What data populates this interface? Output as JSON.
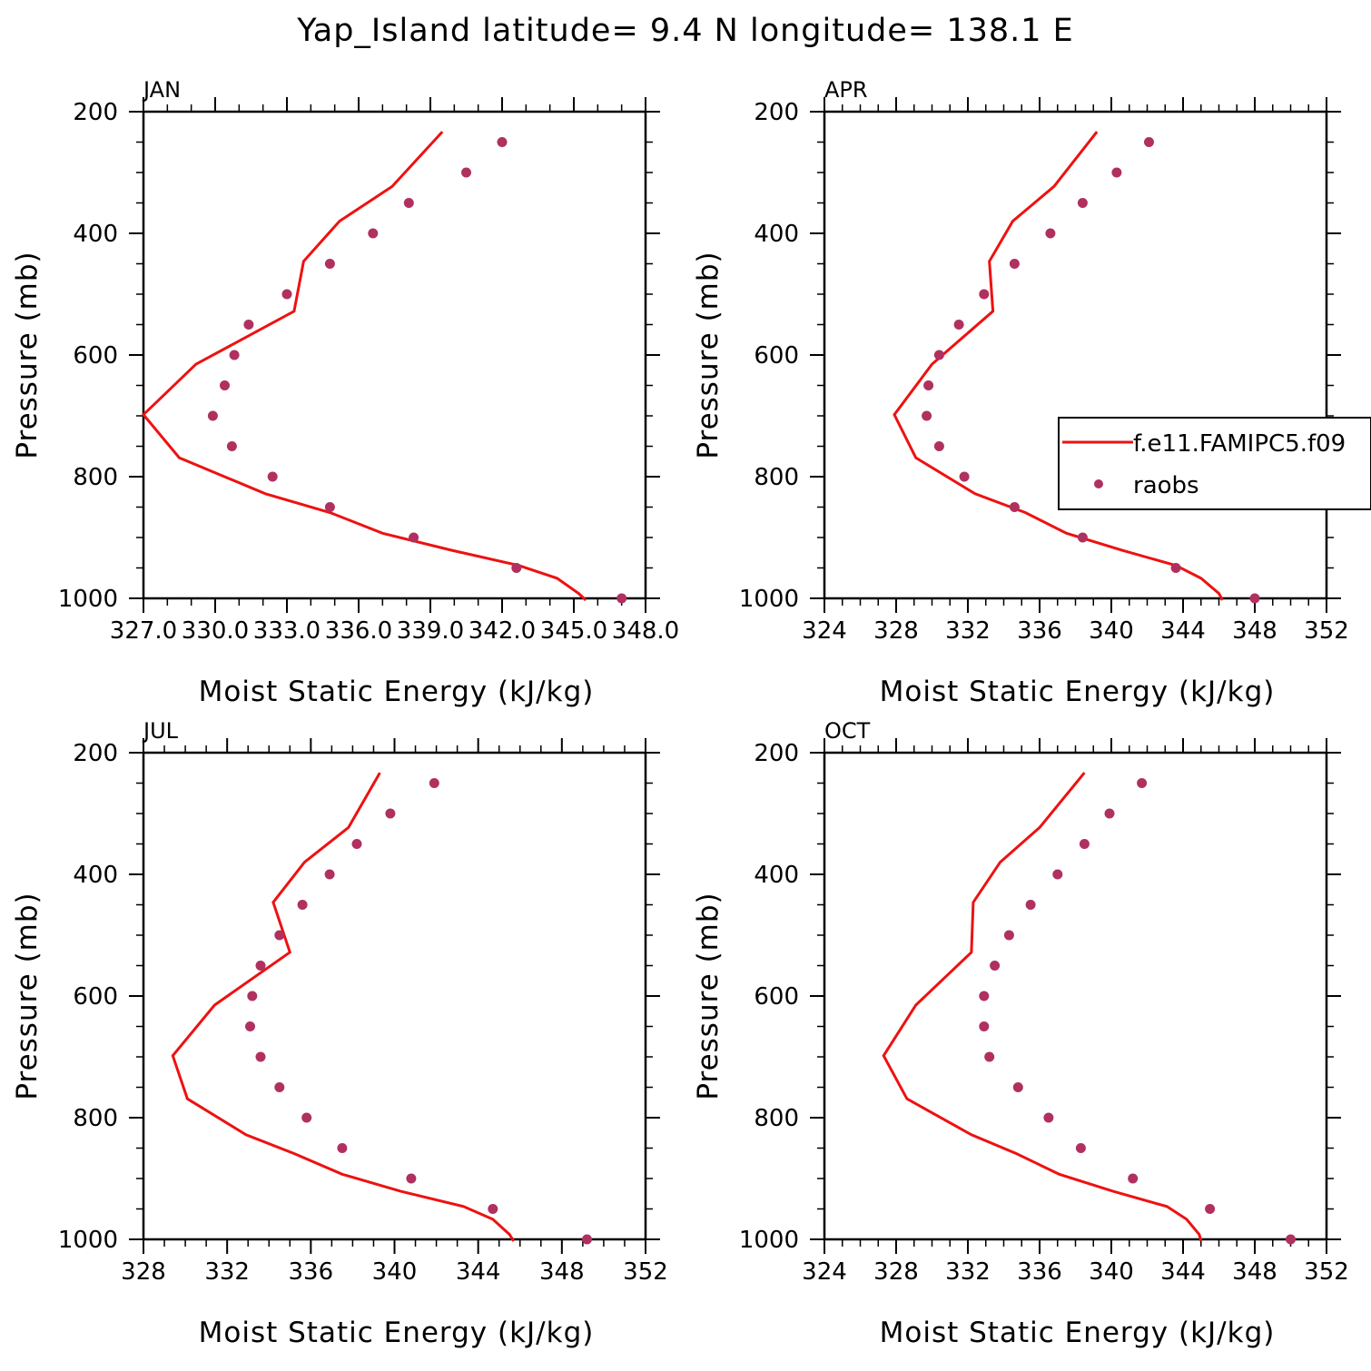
{
  "title": "Yap_Island  latitude= 9.4 N longitude= 138.1 E",
  "colors": {
    "model": "#ee1111",
    "obs": "#b03060",
    "axis": "#000000"
  },
  "legend": {
    "model_label": "f.e11.FAMIPC5.f09",
    "obs_label": "raobs",
    "placement": "panel APR, right"
  },
  "chart_data": [
    {
      "type": "line",
      "panel": "JAN",
      "title": "JAN",
      "xlabel": "Moist Static Energy (kJ/kg)",
      "ylabel": "Pressure (mb)",
      "xlim": [
        327.0,
        348.0
      ],
      "ylim": [
        1000,
        200
      ],
      "xticks": [
        327.0,
        330.0,
        333.0,
        336.0,
        339.0,
        342.0,
        345.0,
        348.0
      ],
      "xtick_labels": [
        "327.0",
        "330.0",
        "333.0",
        "336.0",
        "339.0",
        "342.0",
        "345.0",
        "348.0"
      ],
      "yticks": [
        200,
        400,
        600,
        800,
        1000
      ],
      "ytick_labels": [
        "200",
        "400",
        "600",
        "800",
        "1000"
      ],
      "series": [
        {
          "name": "f.e11.FAMIPC5.f09",
          "kind": "line",
          "x": [
            345.5,
            345.2,
            344.3,
            342.7,
            339.9,
            337.0,
            334.8,
            332.1,
            328.5,
            327.0,
            329.2,
            333.3,
            333.7,
            335.2,
            337.4,
            339.5
          ],
          "y": [
            1003,
            992,
            967,
            946,
            921,
            893,
            859,
            828,
            769,
            698,
            615,
            528,
            446,
            380,
            323,
            233
          ]
        },
        {
          "name": "raobs",
          "kind": "scatter",
          "x": [
            347.0,
            342.6,
            338.3,
            334.8,
            332.4,
            330.7,
            329.9,
            330.4,
            330.8,
            331.4,
            333.0,
            334.8,
            336.6,
            338.1,
            340.5,
            342.0
          ],
          "y": [
            1000,
            950,
            900,
            850,
            800,
            750,
            700,
            650,
            600,
            550,
            500,
            450,
            400,
            350,
            300,
            250
          ]
        }
      ]
    },
    {
      "type": "line",
      "panel": "APR",
      "title": "APR",
      "xlabel": "Moist Static Energy (kJ/kg)",
      "ylabel": "Pressure (mb)",
      "xlim": [
        324,
        352
      ],
      "ylim": [
        1000,
        200
      ],
      "xticks": [
        324,
        328,
        332,
        336,
        340,
        344,
        348,
        352
      ],
      "xtick_labels": [
        "324",
        "328",
        "332",
        "336",
        "340",
        "344",
        "348",
        "352"
      ],
      "yticks": [
        200,
        400,
        600,
        800,
        1000
      ],
      "ytick_labels": [
        "200",
        "400",
        "600",
        "800",
        "1000"
      ],
      "series": [
        {
          "name": "f.e11.FAMIPC5.f09",
          "kind": "line",
          "x": [
            346.2,
            346.0,
            345.0,
            343.6,
            340.6,
            337.5,
            335.2,
            332.4,
            329.1,
            327.9,
            330.0,
            333.4,
            333.2,
            334.5,
            336.8,
            339.2
          ],
          "y": [
            1003,
            992,
            967,
            946,
            921,
            893,
            859,
            828,
            769,
            698,
            615,
            528,
            446,
            380,
            323,
            233
          ]
        },
        {
          "name": "raobs",
          "kind": "scatter",
          "x": [
            348.0,
            343.6,
            338.4,
            334.6,
            331.8,
            330.4,
            329.7,
            329.8,
            330.4,
            331.5,
            332.9,
            334.6,
            336.6,
            338.4,
            340.3,
            342.1
          ],
          "y": [
            1000,
            950,
            900,
            850,
            800,
            750,
            700,
            650,
            600,
            550,
            500,
            450,
            400,
            350,
            300,
            250
          ]
        }
      ]
    },
    {
      "type": "line",
      "panel": "JUL",
      "title": "JUL",
      "xlabel": "Moist Static Energy (kJ/kg)",
      "ylabel": "Pressure (mb)",
      "xlim": [
        328,
        352
      ],
      "ylim": [
        1000,
        200
      ],
      "xticks": [
        328,
        332,
        336,
        340,
        344,
        348,
        352
      ],
      "xtick_labels": [
        "328",
        "332",
        "336",
        "340",
        "344",
        "348",
        "352"
      ],
      "yticks": [
        200,
        400,
        600,
        800,
        1000
      ],
      "ytick_labels": [
        "200",
        "400",
        "600",
        "800",
        "1000"
      ],
      "series": [
        {
          "name": "f.e11.FAMIPC5.f09",
          "kind": "line",
          "x": [
            345.7,
            345.5,
            344.7,
            343.3,
            340.3,
            337.5,
            335.2,
            332.9,
            330.1,
            329.4,
            331.4,
            335.0,
            334.2,
            335.7,
            337.8,
            339.3
          ],
          "y": [
            1003,
            992,
            967,
            946,
            921,
            893,
            859,
            828,
            769,
            698,
            615,
            528,
            446,
            380,
            323,
            233
          ]
        },
        {
          "name": "raobs",
          "kind": "scatter",
          "x": [
            349.2,
            344.7,
            340.8,
            337.5,
            335.8,
            334.5,
            333.6,
            333.1,
            333.2,
            333.6,
            334.5,
            335.6,
            336.9,
            338.2,
            339.8,
            341.9
          ],
          "y": [
            1000,
            950,
            900,
            850,
            800,
            750,
            700,
            650,
            600,
            550,
            500,
            450,
            400,
            350,
            300,
            250
          ]
        }
      ]
    },
    {
      "type": "line",
      "panel": "OCT",
      "title": "OCT",
      "xlabel": "Moist Static Energy (kJ/kg)",
      "ylabel": "Pressure (mb)",
      "xlim": [
        324,
        352
      ],
      "ylim": [
        1000,
        200
      ],
      "xticks": [
        324,
        328,
        332,
        336,
        340,
        344,
        348,
        352
      ],
      "xtick_labels": [
        "324",
        "328",
        "332",
        "336",
        "340",
        "344",
        "348",
        "352"
      ],
      "yticks": [
        200,
        400,
        600,
        800,
        1000
      ],
      "ytick_labels": [
        "200",
        "400",
        "600",
        "800",
        "1000"
      ],
      "series": [
        {
          "name": "f.e11.FAMIPC5.f09",
          "kind": "line",
          "x": [
            345.0,
            344.9,
            344.2,
            343.1,
            340.1,
            337.1,
            334.7,
            332.2,
            328.6,
            327.3,
            329.1,
            332.2,
            332.3,
            333.8,
            336.0,
            338.5
          ],
          "y": [
            1003,
            992,
            967,
            946,
            921,
            893,
            859,
            828,
            769,
            698,
            615,
            528,
            446,
            380,
            323,
            233
          ]
        },
        {
          "name": "raobs",
          "kind": "scatter",
          "x": [
            350.0,
            345.5,
            341.2,
            338.3,
            336.5,
            334.8,
            333.2,
            332.9,
            332.9,
            333.5,
            334.3,
            335.5,
            337.0,
            338.5,
            339.9,
            341.7
          ],
          "y": [
            1000,
            950,
            900,
            850,
            800,
            750,
            700,
            650,
            600,
            550,
            500,
            450,
            400,
            350,
            300,
            250
          ]
        }
      ]
    }
  ]
}
